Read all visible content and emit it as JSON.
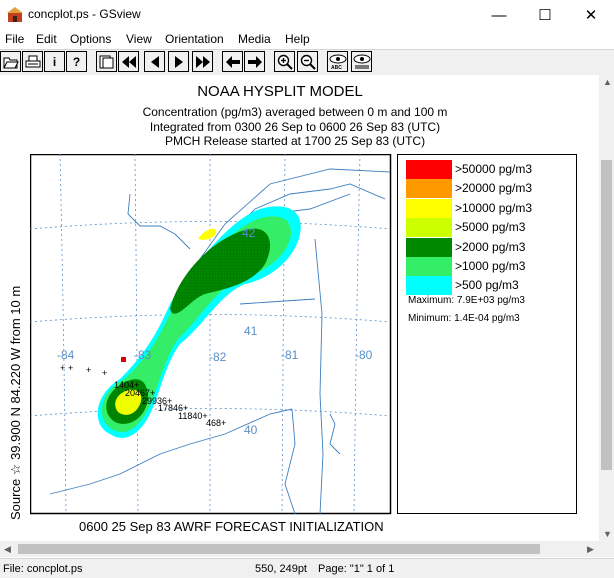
{
  "window": {
    "title": "concplot.ps - GSview",
    "minimize": "—",
    "maximize": "☐",
    "close": "✕"
  },
  "menu": [
    "File",
    "Edit",
    "Options",
    "View",
    "Orientation",
    "Media",
    "Help"
  ],
  "toolbar": {
    "buttons": [
      {
        "name": "open-icon",
        "glyph": "📂"
      },
      {
        "name": "print-icon",
        "glyph": "🖶"
      },
      {
        "name": "info-icon",
        "glyph": "i"
      },
      {
        "name": "help-icon",
        "glyph": "?"
      },
      {
        "name": "goto-page-icon",
        "glyph": "▤"
      },
      {
        "name": "first-page-icon",
        "glyph": "◀◀"
      },
      {
        "name": "prev-page-icon",
        "glyph": "◀"
      },
      {
        "name": "next-page-icon",
        "glyph": "▶"
      },
      {
        "name": "last-page-icon",
        "glyph": "▶▶"
      },
      {
        "name": "back-icon",
        "glyph": "←"
      },
      {
        "name": "forward-icon",
        "glyph": "→"
      },
      {
        "name": "zoom-in-icon",
        "glyph": "⊕"
      },
      {
        "name": "zoom-out-icon",
        "glyph": "⊖"
      },
      {
        "name": "find-icon",
        "glyph": "👁"
      },
      {
        "name": "find-next-icon",
        "glyph": "👁"
      }
    ]
  },
  "plot": {
    "title": "NOAA HYSPLIT MODEL",
    "line1": "Concentration  (pg/m3) averaged between      0 m and   100 m",
    "line2": "Integrated from 0300 26 Sep to 0600 26 Sep 83 (UTC)",
    "line3": "PMCH Release started at 1700 25 Sep 83 (UTC)",
    "footer": "0600 25 Sep 83 AWRF FORECAST INITIALIZATION",
    "side_label": "Source ☆ 39.900  N  84.220  W     from   10 m",
    "lon_labels": [
      "-84",
      "-83",
      "-82",
      "-81",
      "-80"
    ],
    "lat_labels": [
      "42",
      "41",
      "40"
    ],
    "sampler_values": [
      "1404+",
      "20467+",
      "29936+",
      "17846+",
      "11840+",
      "468+"
    ]
  },
  "legend": {
    "items": [
      {
        "label": ">50000 pg/m3",
        "color": "#ff0000"
      },
      {
        "label": ">20000 pg/m3",
        "color": "#ff9900"
      },
      {
        "label": ">10000 pg/m3",
        "color": "#ffff00"
      },
      {
        "label": ">5000 pg/m3",
        "color": "#ccff00"
      },
      {
        "label": ">2000 pg/m3",
        "color": "#008800"
      },
      {
        "label": ">1000 pg/m3",
        "color": "#33ee66"
      },
      {
        "label": ">500 pg/m3",
        "color": "#00ffff"
      }
    ],
    "maximum": "Maximum: 7.9E+03 pg/m3",
    "minimum": "Minimum: 1.4E-04 pg/m3"
  },
  "status": {
    "file": "File: concplot.ps",
    "coords": "550, 249pt",
    "page": "Page: \"1\"  1 of 1"
  }
}
